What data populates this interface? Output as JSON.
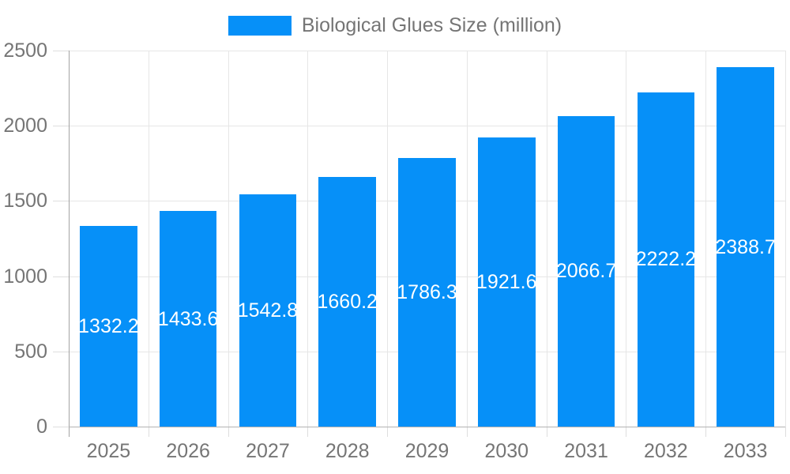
{
  "legend": {
    "label": "Biological Glues Size (million)"
  },
  "chart_data": {
    "type": "bar",
    "title": "Biological Glues Size (million)",
    "series_name": "Biological Glues Size (million)",
    "categories": [
      "2025",
      "2026",
      "2027",
      "2028",
      "2029",
      "2030",
      "2031",
      "2032",
      "2033"
    ],
    "values": [
      1332.2,
      1433.6,
      1542.8,
      1660.2,
      1786.3,
      1921.6,
      2066.7,
      2222.2,
      2388.7
    ],
    "xlabel": "",
    "ylabel": "",
    "ylim": [
      0,
      2500
    ],
    "yticks": [
      0,
      500,
      1000,
      1500,
      2000,
      2500
    ],
    "grid": true,
    "legend_position": "top",
    "bar_label_position": "inside-middle",
    "colors": {
      "bar": "#0690f8",
      "bar_label": "#ffffff",
      "axis_text": "#757575",
      "grid": "#e6e6e6",
      "tick": "#dedede",
      "y_axis_line": "#a3a3a3",
      "x_axis_line": "#b3b3b3"
    }
  }
}
